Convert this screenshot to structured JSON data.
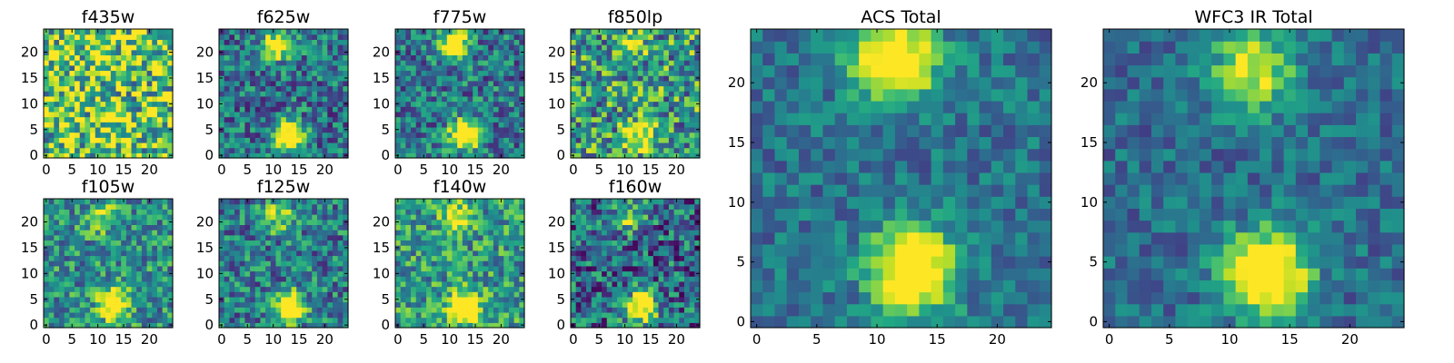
{
  "chart_data": [
    {
      "type": "heatmap",
      "title": "f435w",
      "xticks": [
        0,
        5,
        10,
        15,
        20
      ],
      "yticks": [
        0,
        5,
        10,
        15,
        20
      ],
      "xlim": [
        0,
        25
      ],
      "ylim": [
        0,
        25
      ],
      "grid": false,
      "colormap": "viridis",
      "sources": [
        {
          "x": 11,
          "y": 22,
          "rel_intensity": 0.15
        },
        {
          "x": 13,
          "y": 5,
          "rel_intensity": 0.2
        }
      ],
      "noise": 0.45,
      "background": 0.72
    },
    {
      "type": "heatmap",
      "title": "f625w",
      "xticks": [
        0,
        5,
        10,
        15,
        20
      ],
      "yticks": [
        0,
        5,
        10,
        15,
        20
      ],
      "xlim": [
        0,
        25
      ],
      "ylim": [
        0,
        25
      ],
      "grid": false,
      "colormap": "viridis",
      "sources": [
        {
          "x": 11,
          "y": 21.5,
          "rel_intensity": 0.75
        },
        {
          "x": 13,
          "y": 4,
          "rel_intensity": 1.0
        }
      ],
      "noise": 0.3,
      "background": 0.38
    },
    {
      "type": "heatmap",
      "title": "f775w",
      "xticks": [
        0,
        5,
        10,
        15,
        20
      ],
      "yticks": [
        0,
        5,
        10,
        15,
        20
      ],
      "xlim": [
        0,
        25
      ],
      "ylim": [
        0,
        25
      ],
      "grid": false,
      "colormap": "viridis",
      "sources": [
        {
          "x": 11,
          "y": 21.5,
          "rel_intensity": 0.75
        },
        {
          "x": 13,
          "y": 4,
          "rel_intensity": 1.0
        }
      ],
      "noise": 0.3,
      "background": 0.4
    },
    {
      "type": "heatmap",
      "title": "f850lp",
      "xticks": [
        0,
        5,
        10,
        15,
        20
      ],
      "yticks": [
        0,
        5,
        10,
        15,
        20
      ],
      "xlim": [
        0,
        25
      ],
      "ylim": [
        0,
        25
      ],
      "grid": false,
      "colormap": "viridis",
      "sources": [
        {
          "x": 11,
          "y": 21.5,
          "rel_intensity": 0.45
        },
        {
          "x": 13,
          "y": 4,
          "rel_intensity": 0.6
        }
      ],
      "noise": 0.4,
      "background": 0.55
    },
    {
      "type": "heatmap",
      "title": "f105w",
      "xticks": [
        0,
        5,
        10,
        15,
        20
      ],
      "yticks": [
        0,
        5,
        10,
        15,
        20
      ],
      "xlim": [
        0,
        25
      ],
      "ylim": [
        0,
        25
      ],
      "grid": false,
      "colormap": "viridis",
      "sources": [
        {
          "x": 11,
          "y": 21,
          "rel_intensity": 0.35
        },
        {
          "x": 13,
          "y": 4,
          "rel_intensity": 0.9
        }
      ],
      "noise": 0.3,
      "background": 0.5
    },
    {
      "type": "heatmap",
      "title": "f125w",
      "xticks": [
        0,
        5,
        10,
        15,
        20
      ],
      "yticks": [
        0,
        5,
        10,
        15,
        20
      ],
      "xlim": [
        0,
        25
      ],
      "ylim": [
        0,
        25
      ],
      "grid": false,
      "colormap": "viridis",
      "sources": [
        {
          "x": 11,
          "y": 21,
          "rel_intensity": 0.45
        },
        {
          "x": 13,
          "y": 3.5,
          "rel_intensity": 1.0
        }
      ],
      "noise": 0.3,
      "background": 0.42
    },
    {
      "type": "heatmap",
      "title": "f140w",
      "xticks": [
        0,
        5,
        10,
        15,
        20
      ],
      "yticks": [
        0,
        5,
        10,
        15,
        20
      ],
      "xlim": [
        0,
        25
      ],
      "ylim": [
        0,
        25
      ],
      "grid": false,
      "colormap": "viridis",
      "sources": [
        {
          "x": 11,
          "y": 21,
          "rel_intensity": 0.4
        },
        {
          "x": 13,
          "y": 3.5,
          "rel_intensity": 1.0
        }
      ],
      "noise": 0.3,
      "background": 0.55
    },
    {
      "type": "heatmap",
      "title": "f160w",
      "xticks": [
        0,
        5,
        10,
        15,
        20
      ],
      "yticks": [
        0,
        5,
        10,
        15,
        20
      ],
      "xlim": [
        0,
        25
      ],
      "ylim": [
        0,
        25
      ],
      "grid": false,
      "colormap": "viridis",
      "sources": [
        {
          "x": 11,
          "y": 21,
          "rel_intensity": 0.5
        },
        {
          "x": 13,
          "y": 3.5,
          "rel_intensity": 1.0
        }
      ],
      "noise": 0.35,
      "background": 0.35
    },
    {
      "type": "heatmap",
      "title": "ACS Total",
      "xticks": [
        0,
        5,
        10,
        15,
        20
      ],
      "yticks": [
        0,
        5,
        10,
        15,
        20
      ],
      "xlim": [
        0,
        25
      ],
      "ylim": [
        0,
        25
      ],
      "grid": false,
      "colormap": "viridis",
      "sources": [
        {
          "x": 11.5,
          "y": 22,
          "rel_intensity": 0.9
        },
        {
          "x": 13,
          "y": 4.5,
          "rel_intensity": 1.0
        }
      ],
      "noise": 0.18,
      "background": 0.38
    },
    {
      "type": "heatmap",
      "title": "WFC3 IR Total",
      "xticks": [
        0,
        5,
        10,
        15,
        20
      ],
      "yticks": [
        0,
        5,
        10,
        15,
        20
      ],
      "xlim": [
        0,
        25
      ],
      "ylim": [
        0,
        25
      ],
      "grid": false,
      "colormap": "viridis",
      "sources": [
        {
          "x": 12,
          "y": 21,
          "rel_intensity": 0.6
        },
        {
          "x": 13,
          "y": 4,
          "rel_intensity": 1.0
        }
      ],
      "noise": 0.18,
      "background": 0.36
    }
  ]
}
